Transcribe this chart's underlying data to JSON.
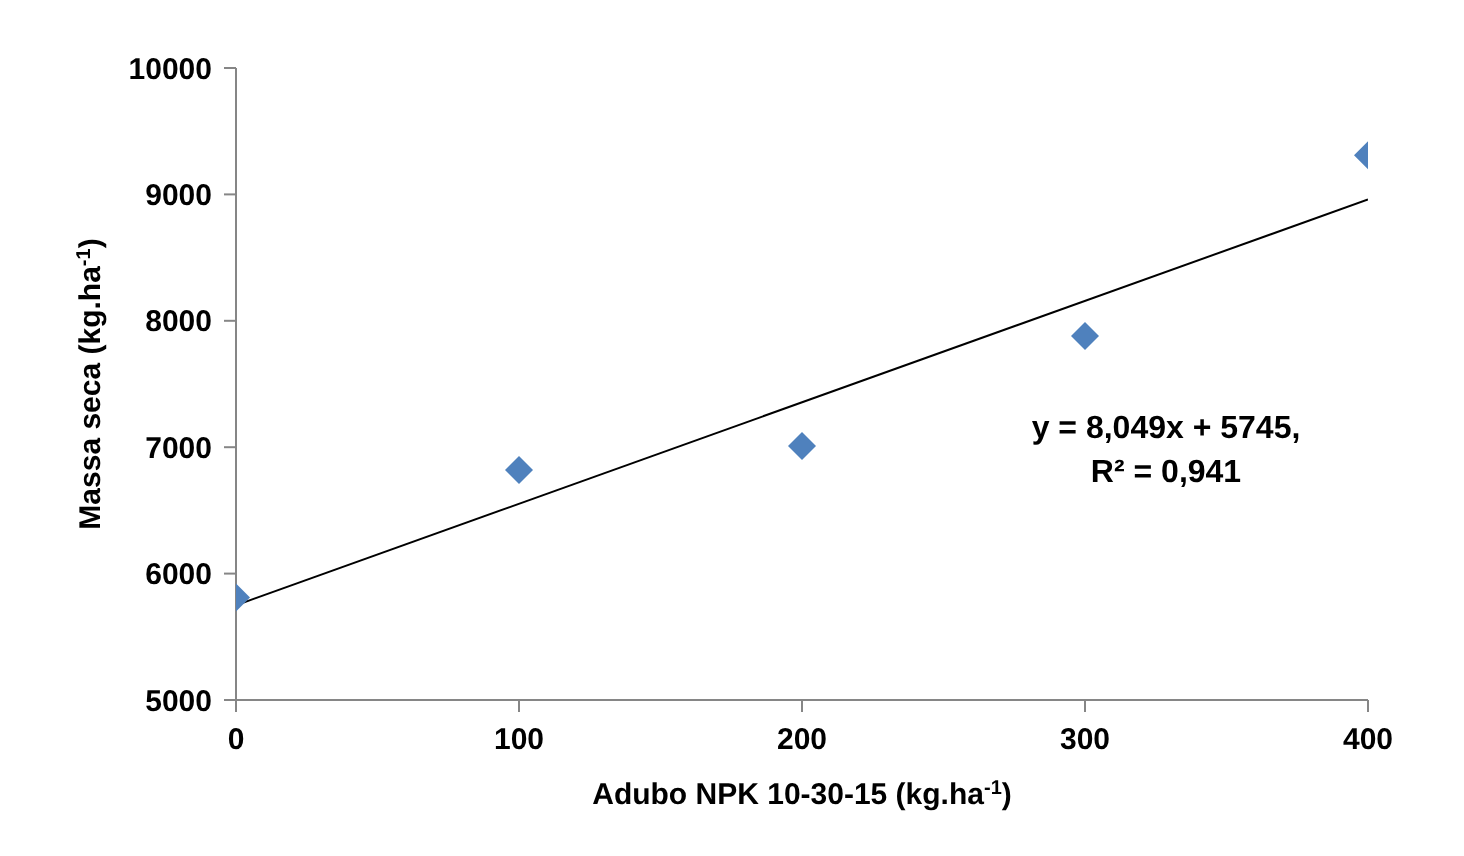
{
  "chart_data": {
    "type": "scatter",
    "xlabel": "Adubo NPK 10-30-15 (kg.ha$^{-1}$)",
    "ylabel": "Massa seca (kg.ha$^{-1}$)",
    "x": [
      0,
      100,
      200,
      300,
      400
    ],
    "series": [
      {
        "color": "#4f81bd",
        "values": [
          5810,
          6820,
          7010,
          7880,
          9310
        ],
        "marker": "diamond"
      },
      {
        "type": "line",
        "color": "#000000",
        "x": [
          0,
          400
        ],
        "values": [
          5750,
          8960
        ],
        "line_style": "solid",
        "marker": "none"
      }
    ],
    "xlim": [
      0,
      400
    ],
    "xticks": [
      0,
      100,
      200,
      300,
      400
    ],
    "ylim": [
      5000,
      10000
    ],
    "yticks": [
      5000,
      6000,
      7000,
      8000,
      9000,
      10000
    ],
    "annotations": [
      "y = 8,049x + 5745,\nR² = 0,941"
    ]
  }
}
